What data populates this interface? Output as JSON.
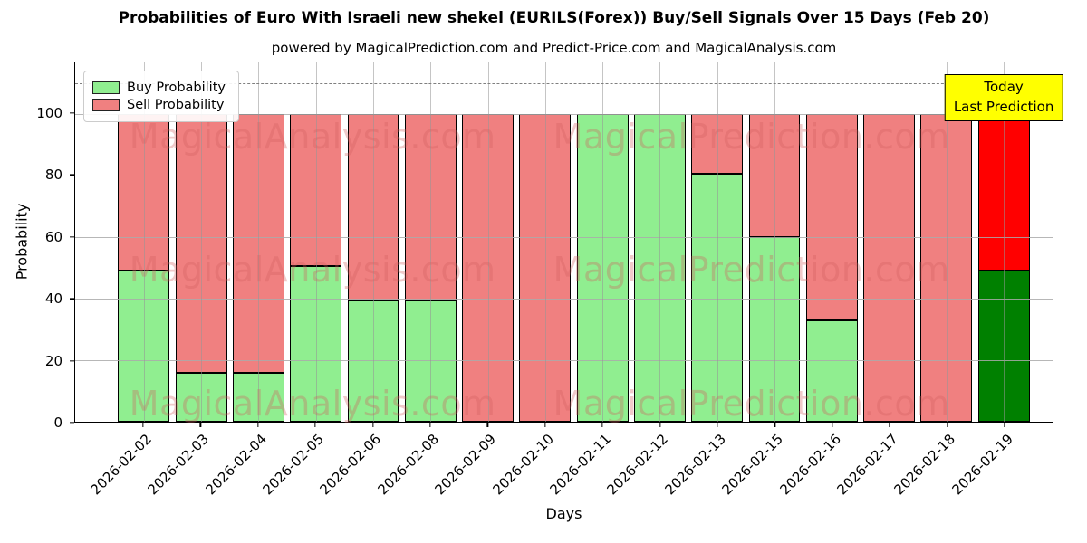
{
  "title": "Probabilities of Euro With Israeli new shekel (EURILS(Forex)) Buy/Sell Signals Over 15 Days (Feb 20)",
  "subtitle": "powered by MagicalPrediction.com and Predict-Price.com and MagicalAnalysis.com",
  "legend": {
    "buy_label": "Buy Probability",
    "sell_label": "Sell Probability"
  },
  "annotation": {
    "line1": "Today",
    "line2": "Last Prediction",
    "bg_color": "#ffff00"
  },
  "axes": {
    "xlabel": "Days",
    "ylabel": "Probability",
    "yticks": [
      0,
      20,
      40,
      60,
      80,
      100
    ]
  },
  "watermarks": {
    "left_text": "MagicalAnalysis.com",
    "right_text": "MagicalPrediction.com"
  },
  "colors": {
    "buy": "#90ee90",
    "sell": "#f08080",
    "today_buy": "#008000",
    "today_sell": "#ff0000",
    "bar_edge": "#000000",
    "dashed_line": "#7f7f7f"
  },
  "chart_data": {
    "type": "bar",
    "stacked": true,
    "title": "Probabilities of Euro With Israeli new shekel (EURILS(Forex)) Buy/Sell Signals Over 15 Days (Feb 20)",
    "xlabel": "Days",
    "ylabel": "Probability",
    "ylim": [
      0,
      116.7
    ],
    "grid": true,
    "legend_position": "upper-left",
    "dashed_line_y": 110,
    "today_index": 15,
    "categories": [
      "2026-02-02",
      "2026-02-03",
      "2026-02-04",
      "2026-02-05",
      "2026-02-06",
      "2026-02-08",
      "2026-02-09",
      "2026-02-10",
      "2026-02-11",
      "2026-02-12",
      "2026-02-13",
      "2026-02-15",
      "2026-02-16",
      "2026-02-17",
      "2026-02-18",
      "2026-02-19"
    ],
    "series": [
      {
        "name": "Buy Probability",
        "values": [
          49,
          16,
          16,
          50.5,
          39.5,
          39.5,
          0,
          0,
          100,
          100,
          80.5,
          60,
          33,
          0,
          0,
          49
        ]
      },
      {
        "name": "Sell Probability",
        "values": [
          51,
          84,
          84,
          49.5,
          60.5,
          60.5,
          100,
          100,
          0,
          0,
          19.5,
          40,
          67,
          100,
          100,
          51
        ]
      }
    ]
  }
}
